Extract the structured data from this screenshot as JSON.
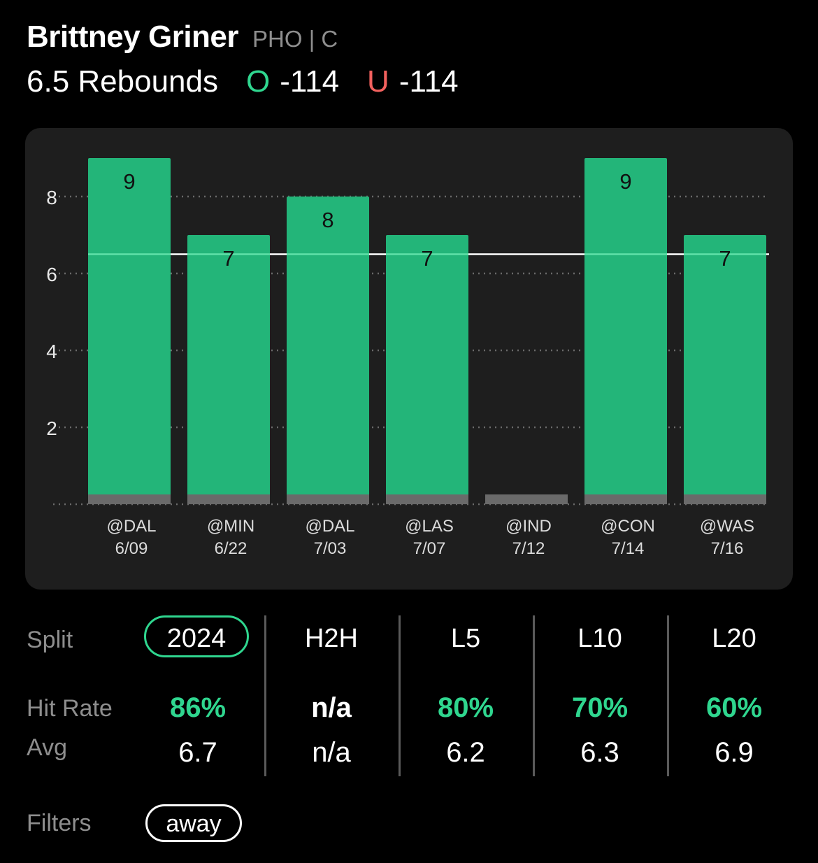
{
  "player": {
    "name": "Brittney Griner",
    "team_pos": "PHO | C"
  },
  "prop": {
    "label": "6.5 Rebounds",
    "over_letter": "O",
    "over_odds": "-114",
    "under_letter": "U",
    "under_odds": "-114"
  },
  "chart_data": {
    "type": "bar",
    "categories": [
      "@DAL 6/09",
      "@MIN 6/22",
      "@DAL 7/03",
      "@LAS 7/07",
      "@IND 7/12",
      "@CON 7/14",
      "@WAS 7/16"
    ],
    "opponents": [
      "@DAL",
      "@MIN",
      "@DAL",
      "@LAS",
      "@IND",
      "@CON",
      "@WAS"
    ],
    "dates": [
      "6/09",
      "6/22",
      "7/03",
      "7/07",
      "7/12",
      "7/14",
      "7/16"
    ],
    "values": [
      9,
      7,
      8,
      7,
      0,
      9,
      7
    ],
    "value_labels": [
      "9",
      "7",
      "8",
      "7",
      "",
      "9",
      "7"
    ],
    "line": 6.5,
    "yticks": [
      2,
      4,
      6,
      8
    ],
    "ylim": [
      0,
      9.5
    ],
    "grid": "dotted",
    "colors": {
      "bar": "#23b579",
      "base": "#6a6a6a",
      "line": "#ffffff",
      "grid": "#6a6a6a"
    }
  },
  "splits": {
    "row_labels": {
      "split": "Split",
      "hit_rate": "Hit Rate",
      "avg": "Avg"
    },
    "columns": [
      {
        "label": "2024",
        "hit": "86%",
        "avg": "6.7",
        "active": true,
        "hit_color": "#2fd68f"
      },
      {
        "label": "H2H",
        "hit": "n/a",
        "avg": "n/a",
        "active": false,
        "hit_color": "#ffffff"
      },
      {
        "label": "L5",
        "hit": "80%",
        "avg": "6.2",
        "active": false,
        "hit_color": "#2fd68f"
      },
      {
        "label": "L10",
        "hit": "70%",
        "avg": "6.3",
        "active": false,
        "hit_color": "#2fd68f"
      },
      {
        "label": "L20",
        "hit": "60%",
        "avg": "6.9",
        "active": false,
        "hit_color": "#2fd68f"
      }
    ]
  },
  "filters": {
    "label": "Filters",
    "items": [
      "away"
    ]
  }
}
